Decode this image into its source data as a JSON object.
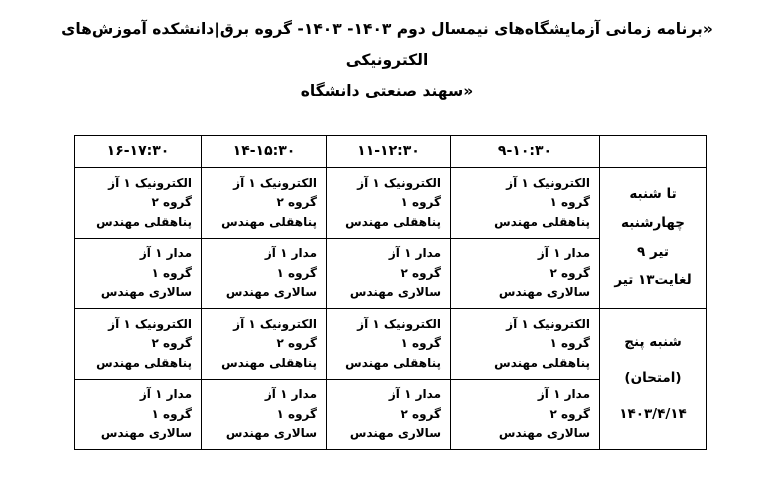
{
  "title": {
    "line1": "«برنامه زمانی آزمایشگاه‌های نیمسال دوم  ۱۴۰۳- ۱۴۰۳- گروه برق|دانشکده آموزش‌های الکترونیکی",
    "line2": "دانشگاه‎ صنعتی‎ سهند»"
  },
  "schedule": {
    "time_headers": [
      "۹-۱۰:۳۰",
      "۱۱-۱۲:۳۰",
      "۱۴-۱۵:۳۰",
      "۱۶-۱۷:۳۰"
    ],
    "day_blocks": [
      {
        "lines": [
          "شنبه‎ تا",
          "چهارشنبه",
          "۹ تیر",
          "لغایت۱۳ تیر"
        ]
      },
      {
        "lines": [
          "پنج‎ شنبه",
          "(امتحان)",
          "۱۴۰۳/۴/۱۴"
        ]
      }
    ],
    "rows": [
      {
        "cells": [
          {
            "course": "آز‎ الکترونیک ۱",
            "group": "گروه ۱",
            "instructor": "مهندس‎ پناهقلی"
          },
          {
            "course": "آز‎ الکترونیک ۱",
            "group": "گروه ۱",
            "instructor": "مهندس‎ پناهقلی"
          },
          {
            "course": "آز‎ الکترونیک ۱",
            "group": "گروه ۲",
            "instructor": "مهندس‎ پناهقلی"
          },
          {
            "course": "آز‎ الکترونیک ۱",
            "group": "گروه ۲",
            "instructor": "مهندس‎ پناهقلی"
          }
        ]
      },
      {
        "cells": [
          {
            "course": "آز‎ مدار ۱",
            "group": "گروه ۲",
            "instructor": "مهندس‎ سالاری"
          },
          {
            "course": "آز‎ مدار ۱",
            "group": "گروه ۲",
            "instructor": "مهندس‎ سالاری"
          },
          {
            "course": "آز‎ مدار ۱",
            "group": "گروه ۱",
            "instructor": "مهندس‎ سالاری"
          },
          {
            "course": "آز‎ مدار ۱",
            "group": "گروه ۱",
            "instructor": "مهندس‎ سالاری"
          }
        ]
      },
      {
        "cells": [
          {
            "course": "آز‎ الکترونیک ۱",
            "group": "گروه ۱",
            "instructor": "مهندس‎ پناهقلی"
          },
          {
            "course": "آز‎ الکترونیک ۱",
            "group": "گروه ۱",
            "instructor": "مهندس‎ پناهقلی"
          },
          {
            "course": "آز‎ الکترونیک ۱",
            "group": "گروه ۲",
            "instructor": "مهندس‎ پناهقلی"
          },
          {
            "course": "آز‎ الکترونیک ۱",
            "group": "گروه ۲",
            "instructor": "مهندس‎ پناهقلی"
          }
        ]
      },
      {
        "cells": [
          {
            "course": "آز‎ مدار ۱",
            "group": "گروه ۲",
            "instructor": "مهندس‎ سالاری"
          },
          {
            "course": "آز‎ مدار ۱",
            "group": "گروه ۲",
            "instructor": "مهندس‎ سالاری"
          },
          {
            "course": "آز‎ مدار ۱",
            "group": "گروه ۱",
            "instructor": "مهندس‎ سالاری"
          },
          {
            "course": "آز‎ مدار ۱",
            "group": "گروه ۱",
            "instructor": "مهندس‎ سالاری"
          }
        ]
      }
    ]
  }
}
